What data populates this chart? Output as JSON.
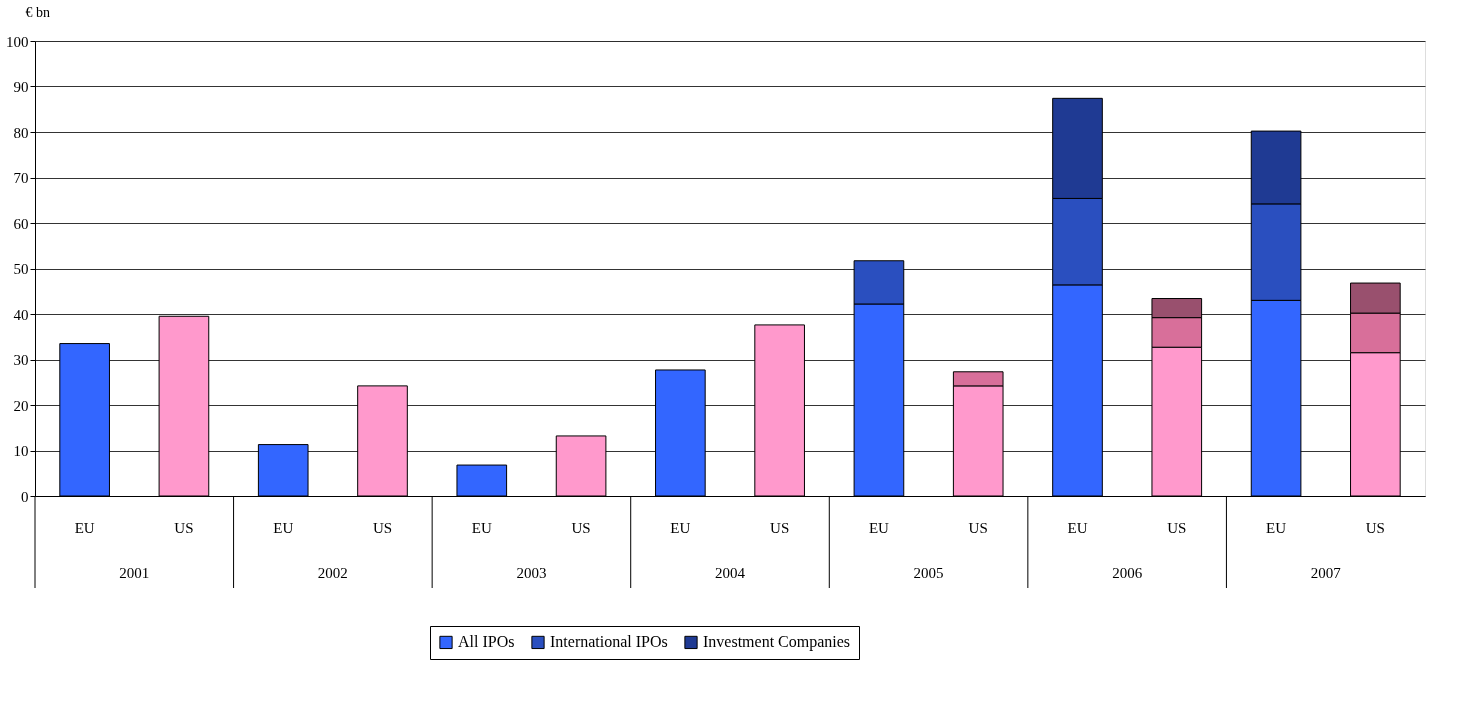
{
  "chart_data": {
    "type": "bar",
    "stacked": true,
    "ylabel": "€ bn",
    "categories": [
      "EU",
      "US",
      "EU",
      "US",
      "EU",
      "US",
      "EU",
      "US",
      "EU",
      "US",
      "EU",
      "US",
      "EU",
      "US"
    ],
    "annotations": [
      "2001",
      "2002",
      "2003",
      "2004",
      "2005",
      "2006",
      "2007"
    ],
    "series": [
      {
        "name": "All IPOs",
        "color": "#3366ff",
        "colors": [
          "#3366ff",
          "#ff99cc",
          "#3366ff",
          "#ff99cc",
          "#3366ff",
          "#ff99cc",
          "#3366ff",
          "#ff99cc",
          "#3366ff",
          "#ff99cc",
          "#3366ff",
          "#ff99cc",
          "#3366ff",
          "#ff99cc"
        ],
        "values": [
          33.5,
          39.5,
          11.3,
          24.2,
          6.8,
          13.2,
          27.7,
          37.6,
          42.2,
          24.2,
          46.4,
          32.7,
          43.0,
          31.5
        ]
      },
      {
        "name": "International IPOs",
        "color": "#2a4fbf",
        "colors": [
          "#2a4fbf",
          "#d86f9a",
          "#2a4fbf",
          "#d86f9a",
          "#2a4fbf",
          "#d86f9a",
          "#2a4fbf",
          "#d86f9a",
          "#2a4fbf",
          "#d86f9a",
          "#2a4fbf",
          "#d86f9a",
          "#2a4fbf",
          "#d86f9a"
        ],
        "values": [
          null,
          null,
          null,
          null,
          null,
          null,
          null,
          null,
          9.5,
          3.1,
          19.0,
          6.5,
          21.2,
          8.7
        ]
      },
      {
        "name": "Investment Companies",
        "color": "#1f3a93",
        "colors": [
          "#1f3a93",
          "#99506e",
          "#1f3a93",
          "#99506e",
          "#1f3a93",
          "#99506e",
          "#1f3a93",
          "#99506e",
          "#1f3a93",
          "#99506e",
          "#1f3a93",
          "#99506e",
          "#1f3a93",
          "#99506e"
        ],
        "values": [
          null,
          null,
          null,
          null,
          null,
          null,
          null,
          null,
          null,
          null,
          22.0,
          4.2,
          16.0,
          6.6
        ]
      }
    ],
    "ylim": [
      0,
      100
    ],
    "yticks": [
      0,
      10,
      20,
      30,
      40,
      50,
      60,
      70,
      80,
      90,
      100
    ],
    "grid": "y",
    "legend": "bottom"
  }
}
